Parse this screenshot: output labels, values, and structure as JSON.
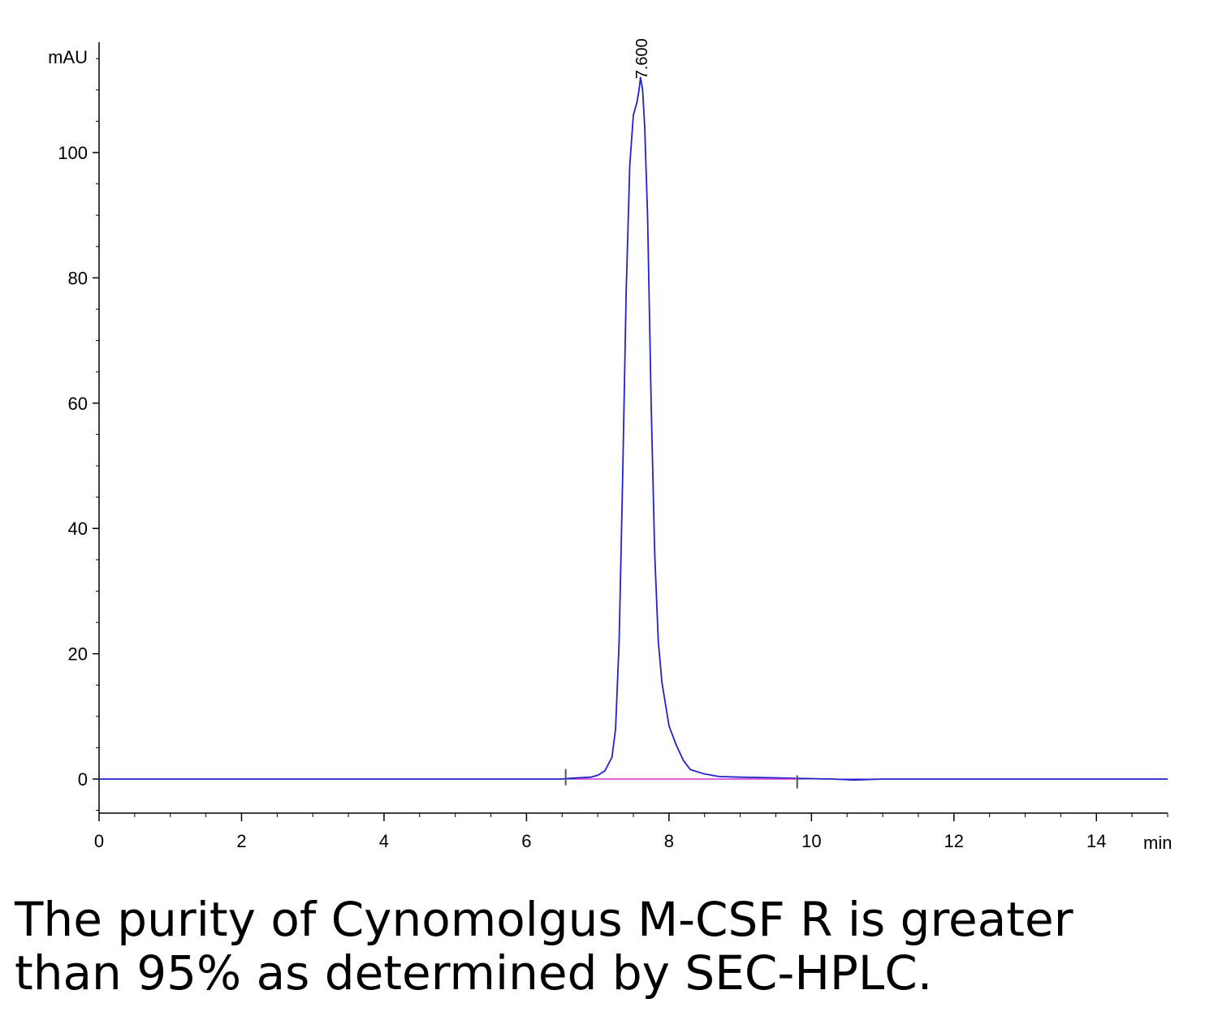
{
  "chart_data": {
    "type": "line",
    "xlabel": "min",
    "ylabel": "mAU",
    "xlim": [
      0,
      15
    ],
    "ylim": [
      -5.5,
      118
    ],
    "x_ticks": [
      0,
      2,
      4,
      6,
      8,
      10,
      12,
      14
    ],
    "y_ticks": [
      0,
      20,
      40,
      60,
      80,
      100
    ],
    "grid": false,
    "annotations": [
      {
        "text": "7.600",
        "x": 7.6,
        "y": 112
      }
    ],
    "series": [
      {
        "color": "#2222cc",
        "x": [
          0,
          6.5,
          6.6,
          6.9,
          7.0,
          7.1,
          7.2,
          7.25,
          7.3,
          7.35,
          7.4,
          7.45,
          7.5,
          7.55,
          7.58,
          7.6,
          7.63,
          7.66,
          7.7,
          7.75,
          7.8,
          7.85,
          7.9,
          8.0,
          8.1,
          8.2,
          8.3,
          8.5,
          8.7,
          9.0,
          9.5,
          9.8,
          10.3,
          10.6,
          11.0,
          15.0
        ],
        "y": [
          0,
          0,
          0.1,
          0.3,
          0.6,
          1.3,
          3.5,
          8,
          22,
          48,
          78,
          98,
          106,
          108,
          110,
          112,
          110,
          104,
          90,
          60,
          36,
          22,
          15.5,
          8.5,
          5.5,
          3,
          1.5,
          0.8,
          0.4,
          0.3,
          0.2,
          0.1,
          0,
          -0.15,
          0,
          0
        ]
      },
      {
        "color": "#cc33cc",
        "x": [
          6.7,
          9.8
        ],
        "y": [
          0,
          0
        ]
      }
    ]
  },
  "caption": {
    "line1": "The purity of Cynomolgus M-CSF R is greater",
    "line2": "than 95% as determined by SEC-HPLC."
  }
}
